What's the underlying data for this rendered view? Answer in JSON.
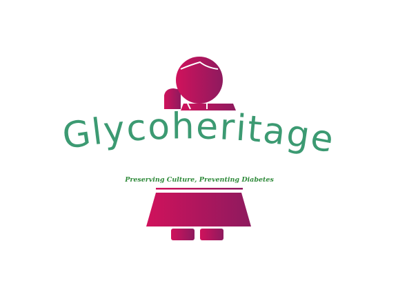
{
  "logo": {
    "brand_name": "Glycoheritage",
    "tagline": "Preserving Culture, Preventing Diabetes",
    "colors": {
      "figure_start": "#d0125c",
      "figure_end": "#8e1a5e",
      "wordmark": "#3c9a72",
      "tagline": "#2f8a3a"
    },
    "icon": "woman-figure-icon"
  }
}
